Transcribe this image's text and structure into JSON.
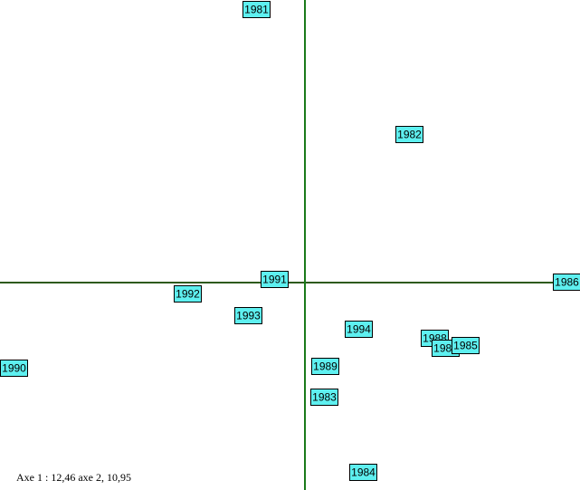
{
  "chart_data": {
    "type": "scatter",
    "title": "",
    "xlabel": "",
    "ylabel": "",
    "caption": "Axe 1 : 12,46 axe 2, 10,95",
    "xlim": [
      -337,
      304
    ],
    "ylim": [
      -229,
      312
    ],
    "grid": false,
    "legend": "none",
    "colors": {
      "x_axis_line": "#2e5a1c",
      "y_axis_line": "#1a7a1a",
      "label_fill": "#5ef0f0",
      "label_border": "#000000"
    },
    "points": [
      {
        "label": "1981",
        "x": -54,
        "y": 302
      },
      {
        "label": "1982",
        "x": 115,
        "y": 164
      },
      {
        "label": "1986",
        "x": 289,
        "y": 1
      },
      {
        "label": "1991",
        "x": -34,
        "y": 4
      },
      {
        "label": "1992",
        "x": -130,
        "y": -12
      },
      {
        "label": "1993",
        "x": -63,
        "y": -36
      },
      {
        "label": "1994",
        "x": 59,
        "y": -51
      },
      {
        "label": "1988",
        "x": 143,
        "y": -61
      },
      {
        "label": "1987",
        "x": 155,
        "y": -72
      },
      {
        "label": "1985",
        "x": 177,
        "y": -69
      },
      {
        "label": "1990",
        "x": -322,
        "y": -94
      },
      {
        "label": "1989",
        "x": 22,
        "y": -92
      },
      {
        "label": "1983",
        "x": 21,
        "y": -126
      },
      {
        "label": "1984",
        "x": 64,
        "y": -209
      }
    ]
  }
}
